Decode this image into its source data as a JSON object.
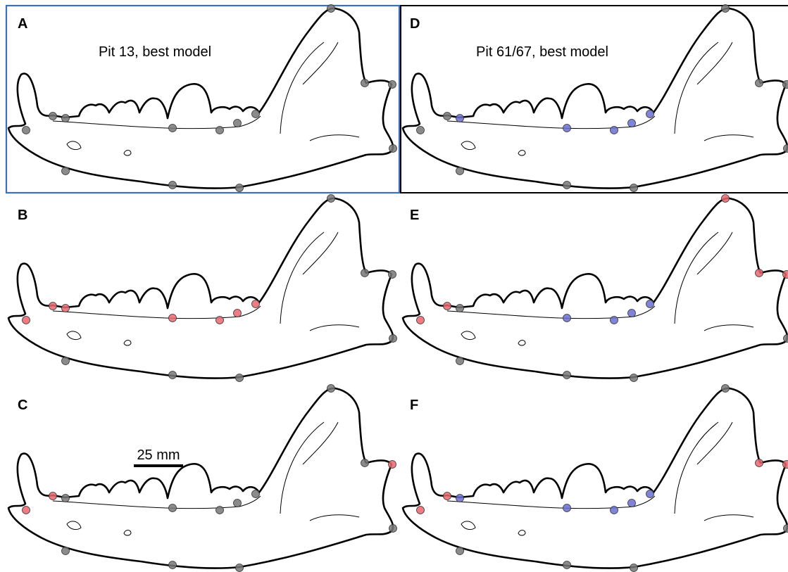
{
  "panels": [
    {
      "label": "A",
      "title": "Pit 13, best model"
    },
    {
      "label": "B"
    },
    {
      "label": "C",
      "scale_bar": "25 mm"
    },
    {
      "label": "D",
      "title": "Pit 61/67, best model"
    },
    {
      "label": "E"
    },
    {
      "label": "F"
    }
  ]
}
